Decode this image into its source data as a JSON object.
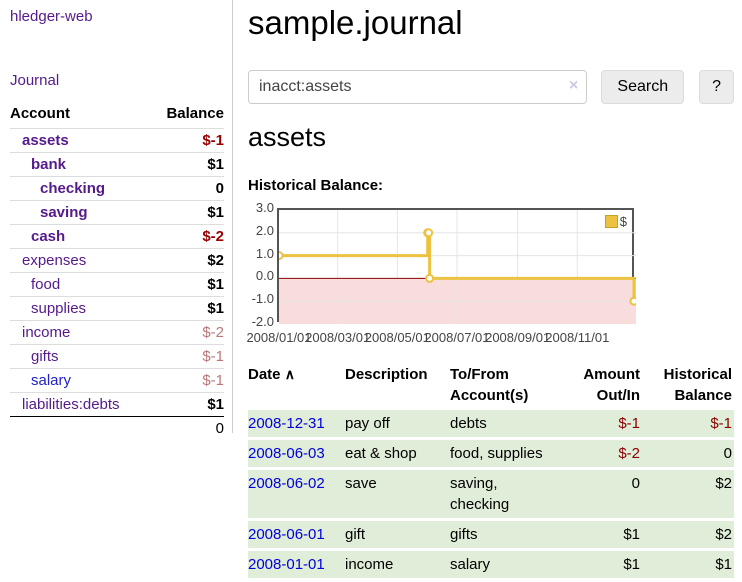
{
  "sidebar": {
    "brand": "hledger-web",
    "journal_label": "Journal",
    "accounts_table": {
      "headers": {
        "account": "Account",
        "balance": "Balance"
      },
      "rows": [
        {
          "name": "assets",
          "indent": 0,
          "bold": true,
          "balance": "$-1",
          "balance_style": "neg-strong",
          "balance_bold": true,
          "link_color": "purple"
        },
        {
          "name": "bank",
          "indent": 1,
          "bold": true,
          "balance": "$1",
          "balance_style": "pos",
          "balance_bold": true,
          "link_color": "purple"
        },
        {
          "name": "checking",
          "indent": 2,
          "bold": true,
          "balance": "0",
          "balance_style": "pos",
          "balance_bold": true,
          "link_color": "purple"
        },
        {
          "name": "saving",
          "indent": 2,
          "bold": true,
          "balance": "$1",
          "balance_style": "pos",
          "balance_bold": true,
          "link_color": "purple"
        },
        {
          "name": "cash",
          "indent": 1,
          "bold": true,
          "balance": "$-2",
          "balance_style": "neg-strong",
          "balance_bold": true,
          "link_color": "purple"
        },
        {
          "name": "expenses",
          "indent": 0,
          "bold": false,
          "balance": "$2",
          "balance_style": "pos",
          "balance_bold": true,
          "link_color": "purple"
        },
        {
          "name": "food",
          "indent": 1,
          "bold": false,
          "balance": "$1",
          "balance_style": "pos",
          "balance_bold": true,
          "link_color": "purple"
        },
        {
          "name": "supplies",
          "indent": 1,
          "bold": false,
          "balance": "$1",
          "balance_style": "pos",
          "balance_bold": true,
          "link_color": "purple"
        },
        {
          "name": "income",
          "indent": 0,
          "bold": false,
          "balance": "$-2",
          "balance_style": "neg-light",
          "balance_bold": false,
          "link_color": "purple"
        },
        {
          "name": "gifts",
          "indent": 1,
          "bold": false,
          "balance": "$-1",
          "balance_style": "neg-light",
          "balance_bold": false,
          "link_color": "purple"
        },
        {
          "name": "salary",
          "indent": 1,
          "bold": false,
          "balance": "$-1",
          "balance_style": "neg-light",
          "balance_bold": false,
          "link_color": "blue"
        },
        {
          "name": "liabilities:debts",
          "indent": 0,
          "bold": false,
          "balance": "$1",
          "balance_style": "pos",
          "balance_bold": true,
          "link_color": "purple"
        }
      ],
      "total": "0"
    }
  },
  "header": {
    "title": "sample.journal"
  },
  "search": {
    "value": "inacct:assets",
    "clear_icon": "×",
    "button_label": "Search",
    "help_label": "?"
  },
  "main": {
    "heading": "assets",
    "chart_label": "Historical Balance:"
  },
  "chart_data": {
    "type": "line",
    "title": "Historical Balance:",
    "legend": "$",
    "steps": true,
    "series": [
      {
        "name": "$",
        "color": "#edc240",
        "points": [
          [
            "2008/01/01",
            1
          ],
          [
            "2008/06/01",
            2
          ],
          [
            "2008/06/02",
            2
          ],
          [
            "2008/06/03",
            0
          ],
          [
            "2008/12/31",
            -1
          ]
        ]
      }
    ],
    "x_ticks": [
      "2008/01/01",
      "2008/03/01",
      "2008/05/01",
      "2008/07/01",
      "2008/09/01",
      "2008/11/01"
    ],
    "y_ticks": [
      3.0,
      2.0,
      1.0,
      0.0,
      -1.0,
      -2.0
    ],
    "xlim": [
      "2008/01/01",
      "2008/12/31"
    ],
    "ylim": [
      -2,
      3
    ],
    "grid": true,
    "grid_color": "#e5e5e5",
    "zero_line_color": "#8b0000",
    "negative_region_color": "#f9dcdc",
    "legend_position": "top-right"
  },
  "register_table": {
    "sort_icon": "∧",
    "headers": [
      {
        "label": "Date"
      },
      {
        "label": "Description"
      },
      {
        "label": "To/From\nAccount(s)"
      },
      {
        "label": "Amount\nOut/In"
      },
      {
        "label": "Historical\nBalance"
      }
    ],
    "rows": [
      {
        "date": "2008-12-31",
        "description": "pay off",
        "accounts": "debts",
        "amount": "$-1",
        "amount_neg": true,
        "balance": "$-1",
        "balance_neg": true
      },
      {
        "date": "2008-06-03",
        "description": "eat & shop",
        "accounts": "food, supplies",
        "amount": "$-2",
        "amount_neg": true,
        "balance": "0",
        "balance_neg": false
      },
      {
        "date": "2008-06-02",
        "description": "save",
        "accounts": "saving, checking",
        "amount": "0",
        "amount_neg": false,
        "balance": "$2",
        "balance_neg": false
      },
      {
        "date": "2008-06-01",
        "description": "gift",
        "accounts": "gifts",
        "amount": "$1",
        "amount_neg": false,
        "balance": "$2",
        "balance_neg": false
      },
      {
        "date": "2008-01-01",
        "description": "income",
        "accounts": "salary",
        "amount": "$1",
        "amount_neg": false,
        "balance": "$1",
        "balance_neg": false
      }
    ]
  },
  "colors": {
    "link_purple": "#551a8b",
    "link_blue": "#0000dd",
    "negative_strong": "#990000",
    "negative_light": "#bb7777",
    "table_negative": "#8b0000",
    "row_green": "#e0edd8",
    "chart_gold": "#edc240",
    "chart_pink": "#f9dcdc",
    "zero_line": "#8b0000"
  }
}
